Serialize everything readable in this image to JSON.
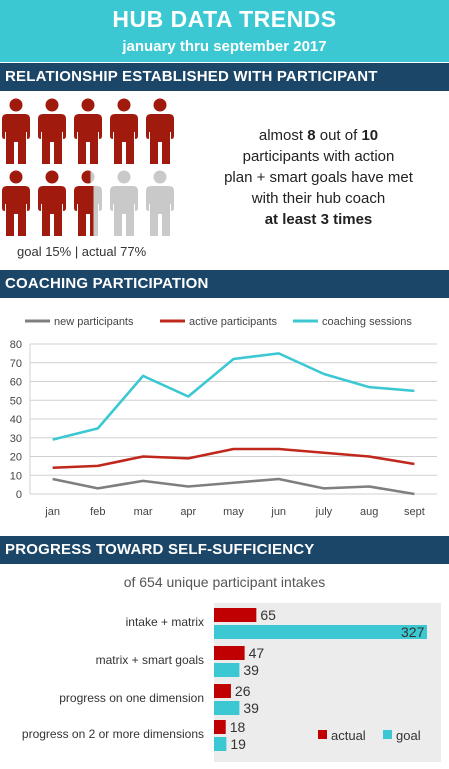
{
  "header": {
    "title": "HUB DATA TRENDS",
    "subtitle": "january thru september 2017"
  },
  "section1": {
    "title": "RELATIONSHIP ESTABLISHED WITH PARTICIPANT",
    "figure_count": 10,
    "filled_fraction": 0.77,
    "goal_text": "goal 15% | actual 77%",
    "statement": {
      "line1_pre": "almost ",
      "line1_num1": "8",
      "line1_mid": " out of ",
      "line1_num2": "10",
      "line2": "participants with action",
      "line3": "plan + smart goals have met",
      "line4": "with their hub coach",
      "line5": "at least 3 times"
    }
  },
  "section2": {
    "title": "COACHING PARTICIPATION"
  },
  "section3": {
    "title": "PROGRESS TOWARD SELF-SUFFICIENCY",
    "subtitle": "of 654 unique participant intakes"
  },
  "colors": {
    "banner": "#3cc8d2",
    "section": "#1b4668",
    "red": "#c0281d",
    "teal": "#3cc8d2",
    "gray": "#7f7f7f",
    "person_red": "#a11a0e",
    "person_gray": "#c9c9c9",
    "bar_red": "#c00000"
  },
  "chart_data": [
    {
      "type": "line",
      "categories": [
        "jan",
        "feb",
        "mar",
        "apr",
        "may",
        "jun",
        "july",
        "aug",
        "sept"
      ],
      "ylim": [
        0,
        80
      ],
      "yticks": [
        0,
        10,
        20,
        30,
        40,
        50,
        60,
        70,
        80
      ],
      "grid": true,
      "legend_position": "top",
      "series": [
        {
          "name": "new participants",
          "color": "#7f7f7f",
          "values": [
            8,
            3,
            7,
            4,
            6,
            8,
            3,
            4,
            0
          ]
        },
        {
          "name": "active participants",
          "color": "#c0281d",
          "values": [
            14,
            15,
            20,
            19,
            24,
            24,
            22,
            20,
            16
          ]
        },
        {
          "name": "coaching sessions",
          "color": "#3cc8d2",
          "values": [
            29,
            35,
            63,
            52,
            72,
            75,
            64,
            57,
            55
          ]
        }
      ]
    },
    {
      "type": "bar",
      "orientation": "horizontal",
      "categories": [
        "intake + matrix",
        "matrix + smart goals",
        "progress on one dimension",
        "progress on 2 or more dimensions"
      ],
      "legend_position": "bottom-right",
      "series": [
        {
          "name": "actual",
          "color": "#c00000",
          "values": [
            65,
            47,
            26,
            18
          ]
        },
        {
          "name": "goal",
          "color": "#3cc8d2",
          "values": [
            327,
            39,
            39,
            19
          ]
        }
      ]
    }
  ]
}
